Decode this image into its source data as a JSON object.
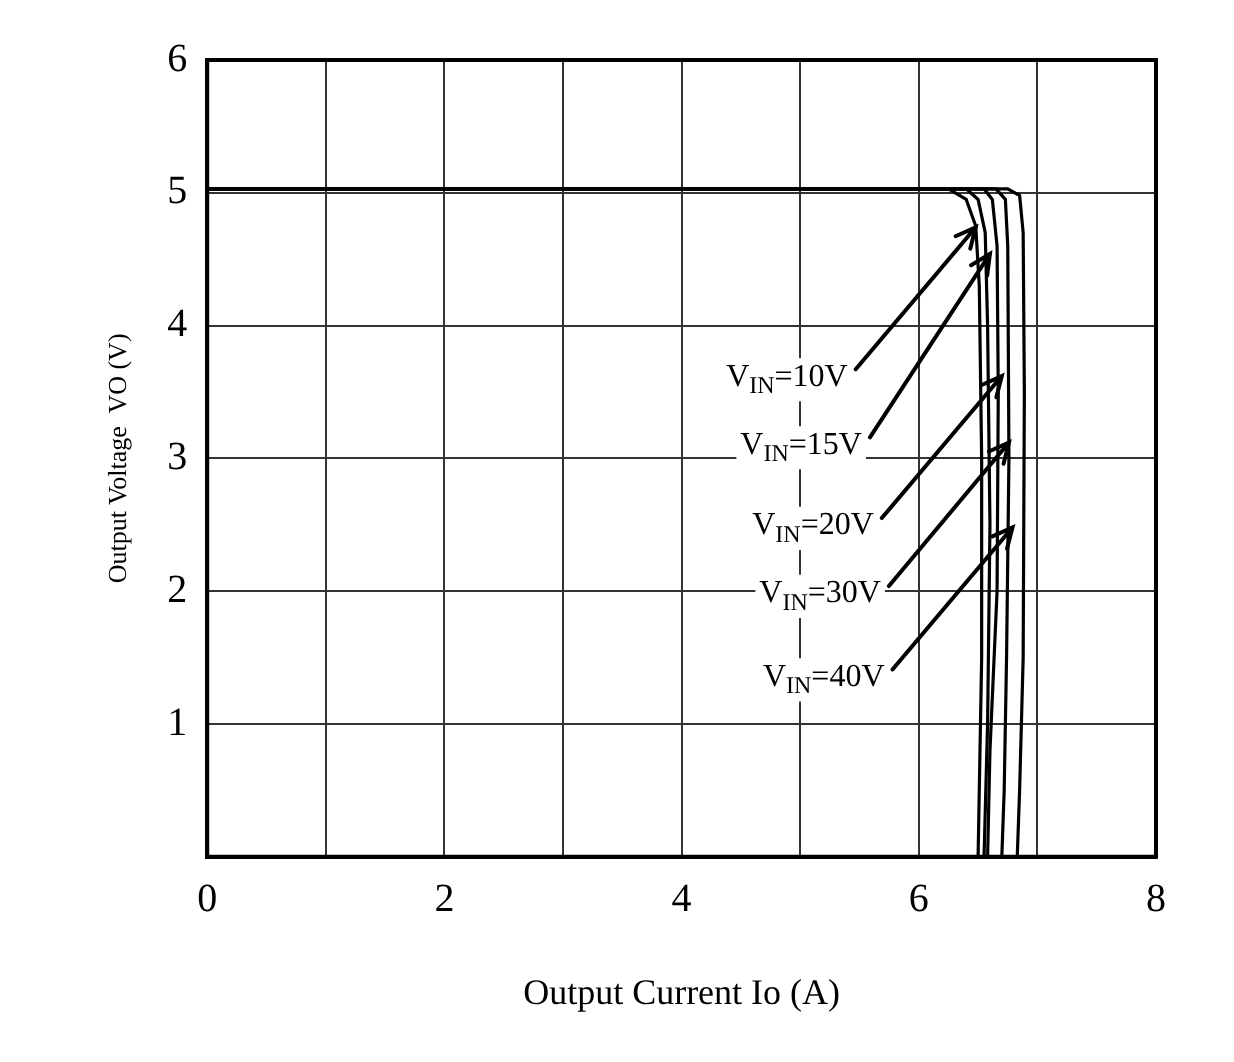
{
  "chart_data": {
    "type": "line",
    "xlabel": "Output Current Io (A)",
    "ylabel": "Output Voltage  VO (V)",
    "xlim": [
      0,
      8
    ],
    "ylim": [
      0,
      6
    ],
    "xticks": [
      0,
      {
        "value": 1,
        "label": null
      },
      2,
      {
        "value": 3,
        "label": null
      },
      4,
      {
        "value": 5,
        "label": null
      },
      6,
      {
        "value": 7,
        "label": null
      },
      8
    ],
    "yticks": [
      1,
      2,
      3,
      4,
      5,
      6
    ],
    "grid": true,
    "series": [
      {
        "color": "#000000",
        "x": [
          0,
          6.25,
          6.4,
          6.48,
          6.51,
          6.53,
          6.53,
          6.5
        ],
        "values": [
          5.03,
          5.03,
          4.95,
          4.75,
          4.3,
          3,
          1.5,
          0
        ]
      },
      {
        "color": "#000000",
        "x": [
          0,
          6.4,
          6.5,
          6.56,
          6.58,
          6.6,
          6.58,
          6.55
        ],
        "values": [
          5.03,
          5.03,
          4.95,
          4.7,
          4,
          2.5,
          1,
          0
        ]
      },
      {
        "color": "#000000",
        "x": [
          0,
          6.55,
          6.62,
          6.66,
          6.67,
          6.66,
          6.6,
          6.58
        ],
        "values": [
          5.03,
          5.03,
          4.95,
          4.6,
          3.5,
          2,
          0.8,
          0
        ]
      },
      {
        "color": "#000000",
        "x": [
          0,
          6.65,
          6.73,
          6.75,
          6.76,
          6.74,
          6.72,
          6.7
        ],
        "values": [
          5.03,
          5.03,
          4.95,
          4.6,
          3,
          1.5,
          0.5,
          0
        ]
      },
      {
        "color": "#000000",
        "x": [
          0,
          6.75,
          6.85,
          6.88,
          6.89,
          6.88,
          6.85,
          6.83
        ],
        "values": [
          5.03,
          5.03,
          4.98,
          4.7,
          3.5,
          1.5,
          0.5,
          0
        ]
      }
    ],
    "annotations": [
      {
        "text": "V$_{IN}$=10V",
        "x": 6.48,
        "y": 4.74
      },
      {
        "text": "V$_{IN}$=15V",
        "x": 6.6,
        "y": 4.54
      },
      {
        "text": "V$_{IN}$=20V",
        "x": 6.7,
        "y": 3.62
      },
      {
        "text": "V$_{IN}$=30V",
        "x": 6.76,
        "y": 3.12
      },
      {
        "text": "V$_{IN}$=40V",
        "x": 6.79,
        "y": 2.48
      }
    ]
  }
}
